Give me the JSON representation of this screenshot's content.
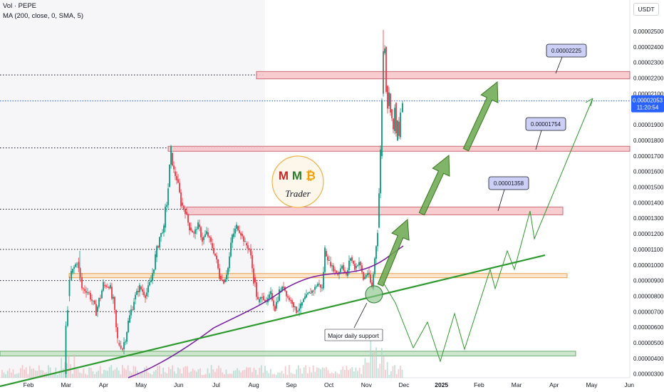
{
  "header": {
    "volume_label": "Vol · PEPE",
    "ma_label": "MA (200, close, 0, SMA, 5)"
  },
  "quote_currency": "USDT",
  "price_tag": {
    "value": "0.00002053",
    "countdown": "11:20:54",
    "color": "#2962ff"
  },
  "logo": {
    "letters": [
      "M",
      "M",
      "₿"
    ],
    "word": "Trader"
  },
  "chart_data": {
    "type": "candlestick",
    "y_axis_ticks": [
      "0.00002500",
      "0.00002400",
      "0.00002300",
      "0.00002200",
      "0.00002100",
      "0.00002000",
      "0.00001900",
      "0.00001800",
      "0.00001700",
      "0.00001600",
      "0.00001500",
      "0.00001400",
      "0.00001300",
      "0.00001200",
      "0.00001100",
      "0.00001000",
      "0.00000900",
      "0.00000800",
      "0.00000700",
      "0.00000600",
      "0.00000500",
      "0.00000400",
      "0.00000300"
    ],
    "x_axis_ticks": [
      "Feb",
      "Mar",
      "Apr",
      "May",
      "Jun",
      "Jul",
      "Aug",
      "Sep",
      "Oct",
      "Nov",
      "Dec",
      "2025",
      "Feb",
      "Mar",
      "Apr",
      "May",
      "Jun"
    ],
    "resistance_labels": [
      "0.00002225",
      "0.00001754",
      "0.00001358"
    ],
    "support_annotation": "Major daily support",
    "colors": {
      "up": "#089981",
      "down": "#f23645",
      "ma": "#7b1fa2",
      "trend": "#2e9a2e",
      "zone_red": "#f8c8cc",
      "zone_orange": "#fbe3c8",
      "zone_green": "#c8e6c9",
      "label_bg": "#cdd0f6"
    }
  }
}
